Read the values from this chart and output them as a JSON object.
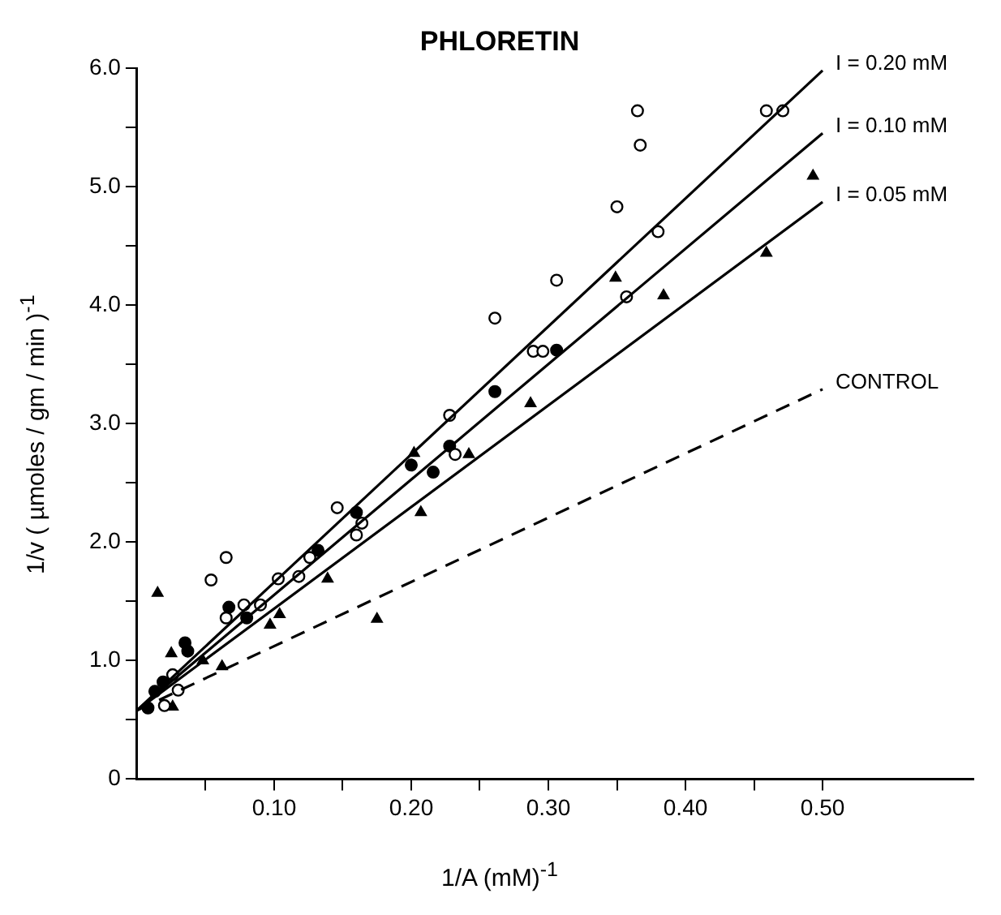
{
  "chart_data": {
    "type": "scatter",
    "title": "PHLORETIN",
    "xlabel": "1/A (mM)$^{-1}$",
    "ylabel": "1/v ( µmoles / gm / min )$^{-1}$",
    "xlim": [
      0,
      0.61
    ],
    "ylim": [
      0,
      6.0
    ],
    "xticks": [
      {
        "value": 0.05,
        "label": null
      },
      {
        "value": 0.1,
        "label": "0.10"
      },
      {
        "value": 0.15,
        "label": null
      },
      {
        "value": 0.2,
        "label": "0.20"
      },
      {
        "value": 0.25,
        "label": null
      },
      {
        "value": 0.3,
        "label": "0.30"
      },
      {
        "value": 0.35,
        "label": null
      },
      {
        "value": 0.4,
        "label": "0.40"
      },
      {
        "value": 0.45,
        "label": null
      },
      {
        "value": 0.5,
        "label": "0.50"
      }
    ],
    "yticks": [
      0,
      {
        "value": 0.5,
        "label": null
      },
      {
        "value": 1.0,
        "label": "1.0"
      },
      {
        "value": 1.5,
        "label": null
      },
      {
        "value": 2.0,
        "label": "2.0"
      },
      {
        "value": 2.5,
        "label": null
      },
      {
        "value": 3.0,
        "label": "3.0"
      },
      {
        "value": 3.5,
        "label": null
      },
      {
        "value": 4.0,
        "label": "4.0"
      },
      {
        "value": 4.5,
        "label": null
      },
      {
        "value": 5.0,
        "label": "5.0"
      },
      {
        "value": 5.5,
        "label": null
      },
      {
        "value": 6.0,
        "label": "6.0"
      }
    ],
    "grid": false,
    "legend": false,
    "series": [
      {
        "name": "I = 0.20 mM",
        "type": "line",
        "color": "#000000",
        "line_style": "solid",
        "marker": "none",
        "x": [
          0,
          0.5
        ],
        "values": [
          0.58,
          5.98
        ]
      },
      {
        "name": "I = 0.10 mM",
        "type": "line",
        "color": "#000000",
        "line_style": "solid",
        "marker": "none",
        "x": [
          0,
          0.5
        ],
        "values": [
          0.58,
          5.45
        ]
      },
      {
        "name": "I = 0.05 mM",
        "type": "line",
        "color": "#000000",
        "line_style": "solid",
        "marker": "none",
        "x": [
          0,
          0.5
        ],
        "values": [
          0.58,
          4.87
        ]
      },
      {
        "name": "CONTROL",
        "type": "line",
        "color": "#000000",
        "line_style": "dashed",
        "marker": "none",
        "x": [
          0,
          0.5
        ],
        "values": [
          0.58,
          3.29
        ]
      },
      {
        "type": "scatter",
        "color": "#ffffff",
        "marker": "circle",
        "x": [
          0.02,
          0.03,
          0.026,
          0.054,
          0.065,
          0.078,
          0.09,
          0.065,
          0.103,
          0.118,
          0.126,
          0.146,
          0.16,
          0.164,
          0.228,
          0.232,
          0.289,
          0.296,
          0.261,
          0.306,
          0.365,
          0.367,
          0.35,
          0.38,
          0.357,
          0.459,
          0.471
        ],
        "values": [
          0.62,
          0.75,
          0.88,
          1.68,
          1.87,
          1.47,
          1.47,
          1.36,
          1.69,
          1.71,
          1.87,
          2.29,
          2.06,
          2.16,
          3.07,
          2.74,
          3.61,
          3.61,
          3.89,
          4.21,
          5.64,
          5.35,
          4.83,
          4.62,
          4.07,
          5.64,
          5.64
        ]
      },
      {
        "type": "scatter",
        "color": "#000000",
        "marker": "circle",
        "x": [
          0.008,
          0.013,
          0.019,
          0.035,
          0.037,
          0.067,
          0.08,
          0.132,
          0.16,
          0.2,
          0.216,
          0.228,
          0.261,
          0.306
        ],
        "values": [
          0.6,
          0.74,
          0.82,
          1.15,
          1.08,
          1.45,
          1.36,
          1.93,
          2.25,
          2.65,
          2.59,
          2.81,
          3.27,
          3.62
        ]
      },
      {
        "type": "scatter",
        "color": "#000000",
        "marker": "triangle",
        "x": [
          0.015,
          0.025,
          0.026,
          0.048,
          0.062,
          0.097,
          0.104,
          0.139,
          0.175,
          0.207,
          0.202,
          0.242,
          0.287,
          0.349,
          0.384,
          0.459,
          0.493
        ],
        "values": [
          1.57,
          1.06,
          0.61,
          1.0,
          0.95,
          1.3,
          1.39,
          1.69,
          1.35,
          2.25,
          2.75,
          2.74,
          3.17,
          4.23,
          4.08,
          4.44,
          5.09
        ]
      }
    ]
  }
}
